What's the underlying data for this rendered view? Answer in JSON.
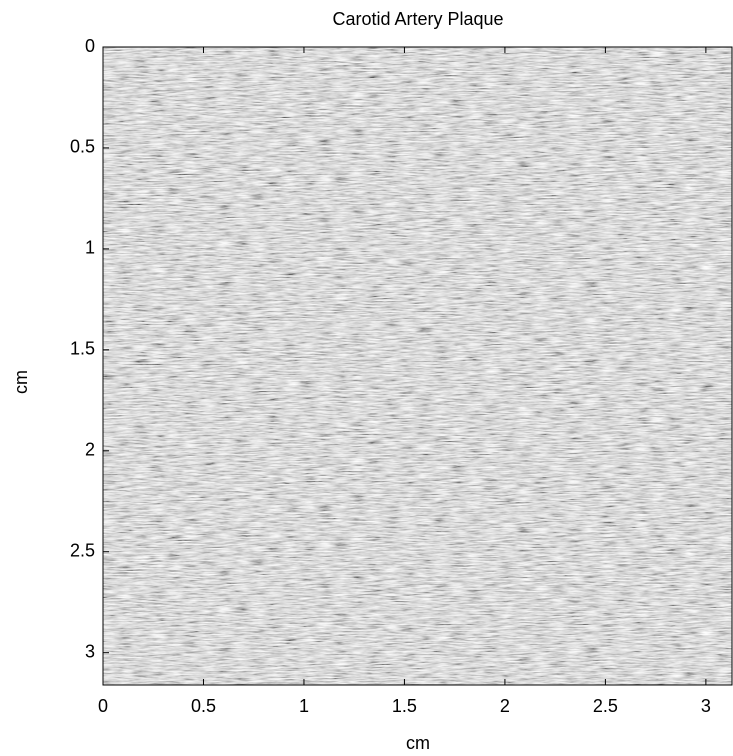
{
  "chart_data": {
    "type": "image",
    "title": "Carotid Artery Plaque",
    "xlabel": "cm",
    "ylabel": "cm",
    "xlim": [
      0,
      3.13
    ],
    "ylim": [
      0,
      3.16
    ],
    "y_reversed": true,
    "xticks": [
      0,
      0.5,
      1,
      1.5,
      2,
      2.5,
      3
    ],
    "yticks": [
      0,
      0.5,
      1,
      1.5,
      2,
      2.5,
      3
    ],
    "colormap": "gray"
  }
}
